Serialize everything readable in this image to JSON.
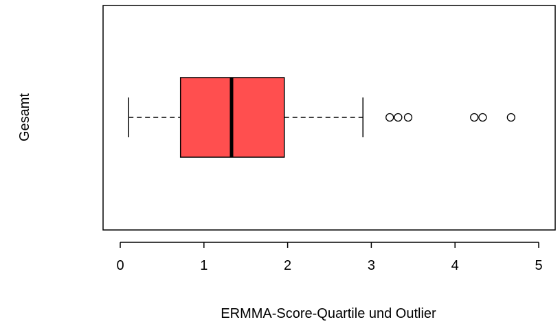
{
  "chart_data": {
    "type": "boxplot",
    "orientation": "horizontal",
    "title": "",
    "xlabel": "ERMMA-Score-Quartile und Outlier",
    "ylabel": "Gesamt",
    "xlim": [
      0,
      5
    ],
    "xticks": [
      0,
      1,
      2,
      3,
      4,
      5
    ],
    "grid": false,
    "colors": {
      "box_fill": "#ff4f4f",
      "stroke": "#000000"
    },
    "boxes": [
      {
        "group": "Gesamt",
        "whisker_low": 0.1,
        "q1": 0.72,
        "median": 1.33,
        "q3": 1.96,
        "whisker_high": 2.9,
        "outliers": [
          3.22,
          3.32,
          3.44,
          4.23,
          4.33,
          4.67
        ]
      }
    ]
  }
}
